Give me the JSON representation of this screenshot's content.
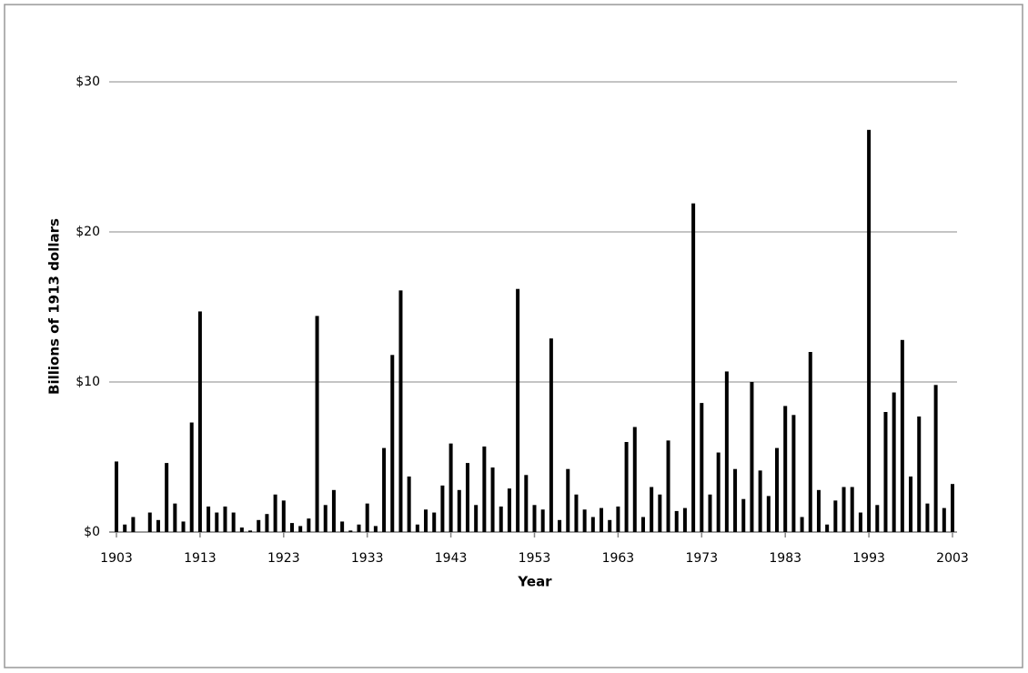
{
  "chart_data": {
    "type": "bar",
    "xlabel": "Year",
    "ylabel": "Billions of 1913 dollars",
    "color": "#000000",
    "grid": true,
    "xlim": [
      1903,
      2003
    ],
    "xticks": [
      1903,
      1913,
      1923,
      1933,
      1943,
      1953,
      1963,
      1973,
      1983,
      1993,
      2003
    ],
    "ylim": [
      0,
      30
    ],
    "yticks": [
      {
        "value": 0,
        "label": "$0"
      },
      {
        "value": 10,
        "label": "$10"
      },
      {
        "value": 20,
        "label": "$20"
      },
      {
        "value": 30,
        "label": "$30"
      }
    ],
    "x": [
      1903,
      1904,
      1905,
      1906,
      1907,
      1908,
      1909,
      1910,
      1911,
      1912,
      1913,
      1914,
      1915,
      1916,
      1917,
      1918,
      1919,
      1920,
      1921,
      1922,
      1923,
      1924,
      1925,
      1926,
      1927,
      1928,
      1929,
      1930,
      1931,
      1932,
      1933,
      1934,
      1935,
      1936,
      1937,
      1938,
      1939,
      1940,
      1941,
      1942,
      1943,
      1944,
      1945,
      1946,
      1947,
      1948,
      1949,
      1950,
      1951,
      1952,
      1953,
      1954,
      1955,
      1956,
      1957,
      1958,
      1959,
      1960,
      1961,
      1962,
      1963,
      1964,
      1965,
      1966,
      1967,
      1968,
      1969,
      1970,
      1971,
      1972,
      1973,
      1974,
      1975,
      1976,
      1977,
      1978,
      1979,
      1980,
      1981,
      1982,
      1983,
      1984,
      1985,
      1986,
      1987,
      1988,
      1989,
      1990,
      1991,
      1992,
      1993,
      1994,
      1995,
      1996,
      1997,
      1998,
      1999,
      2000,
      2001,
      2002,
      2003
    ],
    "values": [
      4.7,
      0.5,
      1.0,
      0,
      1.3,
      0.8,
      4.6,
      1.9,
      0.7,
      7.3,
      14.7,
      1.7,
      1.3,
      1.7,
      1.3,
      0.3,
      0.1,
      0.8,
      1.2,
      2.5,
      2.1,
      0.6,
      0.4,
      0.9,
      14.4,
      1.8,
      2.8,
      0.7,
      0.1,
      0.5,
      1.9,
      0.4,
      5.6,
      11.8,
      16.1,
      3.7,
      0.5,
      1.5,
      1.3,
      3.1,
      5.9,
      2.8,
      4.6,
      1.8,
      5.7,
      4.3,
      1.7,
      2.9,
      16.2,
      3.8,
      1.8,
      1.5,
      12.9,
      0.8,
      4.2,
      2.5,
      1.5,
      1.0,
      1.6,
      0.8,
      1.7,
      6.0,
      7.0,
      1.0,
      3.0,
      2.5,
      6.1,
      1.4,
      1.6,
      21.9,
      8.6,
      2.5,
      5.3,
      10.7,
      4.2,
      2.2,
      10.0,
      4.1,
      2.4,
      5.6,
      8.4,
      7.8,
      1.0,
      12.0,
      2.8,
      0.5,
      2.1,
      3.0,
      3.0,
      1.3,
      26.8,
      1.8,
      8.0,
      9.3,
      12.8,
      3.7,
      7.7,
      1.9,
      9.8,
      1.6,
      3.2
    ]
  }
}
